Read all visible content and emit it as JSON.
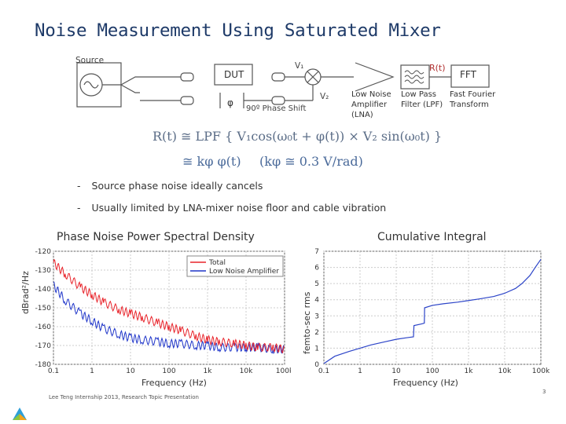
{
  "title": "Noise Measurement Using Saturated Mixer",
  "diagram": {
    "source_label": "Source",
    "dut_label": "DUT",
    "phi_symbol": "φ",
    "phase_shift_label": "90º Phase Shift",
    "v1_label": "V₁",
    "v2_label": "V₂",
    "lna_label": [
      "Low Noise",
      "Amplifier",
      "(LNA)"
    ],
    "rt_label": "R(t)",
    "lpf_label": [
      "Low Pass",
      "Filter (LPF)"
    ],
    "fft_box_label": "FFT",
    "fft_label": [
      "Fast Fourier",
      "Transform"
    ]
  },
  "equations": {
    "line1": "R(t) ≅ LPF { V₁cos(ω₀t + φ(t)) × V₂ sin(ω₀t) }",
    "line2_left": "≅ kφ φ(t)",
    "line2_right": "(kφ ≅ 0.3 V/rad)"
  },
  "bullets": [
    "Source phase noise ideally cancels",
    "Usually limited by LNA-mixer noise floor and cable vibration"
  ],
  "left_plot": {
    "subtitle": "Phase Noise Power Spectral Density",
    "ylabel": "dBrad²/Hz",
    "xlabel": "Frequency (Hz)",
    "y_ticks": [
      "-120",
      "-130",
      "-140",
      "-150",
      "-160",
      "-170",
      "-180"
    ],
    "x_ticks": [
      "0.1",
      "1",
      "10",
      "100",
      "1k",
      "10k",
      "100k"
    ],
    "legend": [
      "Total",
      "Low Noise Amplifier"
    ],
    "colors": {
      "total": "#e8232a",
      "lna": "#1f35c9"
    }
  },
  "right_plot": {
    "subtitle": "Cumulative Integral",
    "ylabel": "femto-sec rms",
    "xlabel": "Frequency (Hz)",
    "y_ticks": [
      "7",
      "6",
      "5",
      "4",
      "3",
      "2",
      "1",
      "0"
    ],
    "x_ticks": [
      "0.1",
      "1",
      "10",
      "100",
      "1k",
      "10k",
      "100k"
    ],
    "color": "#2c44c8"
  },
  "footer": "Lee Teng Internship 2013, Research Topic Presentation",
  "page_number": "3",
  "chart_data": [
    {
      "type": "line",
      "title": "Phase Noise Power Spectral Density",
      "xlabel": "Frequency (Hz)",
      "ylabel": "dBrad²/Hz",
      "x_scale": "log",
      "xlim": [
        0.1,
        100000
      ],
      "ylim": [
        -180,
        -120
      ],
      "legend": "top-right",
      "series": [
        {
          "name": "Total",
          "x": [
            0.1,
            0.2,
            0.5,
            1,
            2,
            5,
            10,
            20,
            50,
            100,
            200,
            500,
            1000,
            2000,
            5000,
            10000,
            20000,
            50000,
            100000
          ],
          "y": [
            -126,
            -132,
            -139,
            -143,
            -147,
            -151,
            -153,
            -155,
            -158,
            -160,
            -162,
            -165,
            -167,
            -168,
            -169,
            -170,
            -171,
            -171,
            -172
          ]
        },
        {
          "name": "Low Noise Amplifier",
          "x": [
            0.1,
            0.2,
            0.5,
            1,
            2,
            5,
            10,
            20,
            50,
            100,
            200,
            500,
            1000,
            2000,
            5000,
            10000,
            20000,
            50000,
            100000
          ],
          "y": [
            -138,
            -146,
            -153,
            -157,
            -161,
            -164,
            -166,
            -167,
            -168,
            -169,
            -169,
            -170,
            -170,
            -171,
            -171,
            -171,
            -171,
            -172,
            -172
          ]
        }
      ]
    },
    {
      "type": "line",
      "title": "Cumulative Integral",
      "xlabel": "Frequency (Hz)",
      "ylabel": "femto-sec rms",
      "x_scale": "log",
      "xlim": [
        0.1,
        100000
      ],
      "ylim": [
        0,
        7
      ],
      "series": [
        {
          "x": [
            0.1,
            0.2,
            0.5,
            1,
            2,
            5,
            10,
            20,
            30,
            31,
            50,
            60,
            61,
            100,
            200,
            500,
            1000,
            2000,
            5000,
            10000,
            20000,
            30000,
            50000,
            70000,
            100000
          ],
          "y": [
            0.05,
            0.5,
            0.8,
            1.0,
            1.2,
            1.4,
            1.55,
            1.65,
            1.7,
            2.4,
            2.5,
            2.55,
            3.5,
            3.65,
            3.75,
            3.85,
            3.95,
            4.05,
            4.2,
            4.4,
            4.7,
            5.0,
            5.5,
            6.0,
            6.5
          ]
        }
      ]
    }
  ]
}
